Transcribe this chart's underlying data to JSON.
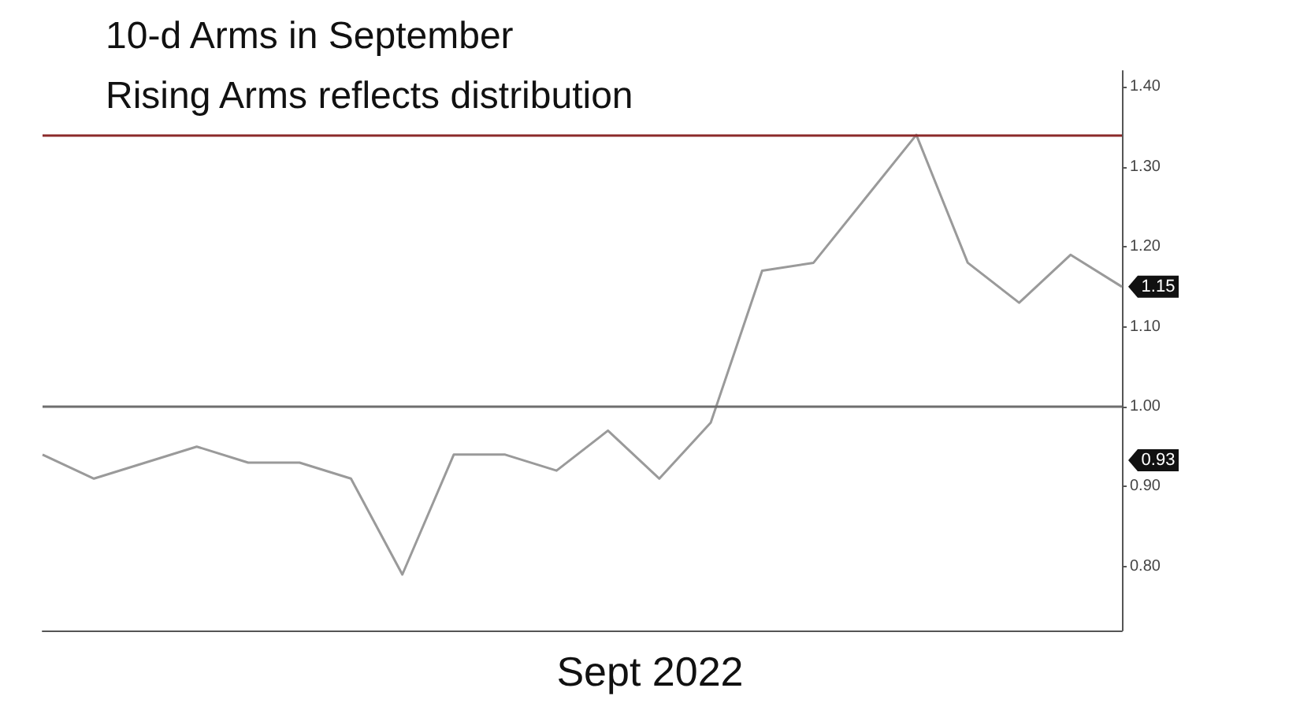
{
  "chart_data": {
    "type": "line",
    "title": "10-d Arms in September",
    "subtitle": "Rising Arms reflects distribution",
    "xlabel": "Sept 2022",
    "categories": [
      null,
      null,
      null,
      null,
      null,
      null,
      null,
      null,
      null,
      null,
      null,
      null,
      null,
      null,
      null,
      null,
      null,
      null,
      null,
      null,
      null,
      null
    ],
    "series": [
      {
        "color": "#9a9a9a",
        "values": [
          0.94,
          0.91,
          0.93,
          0.95,
          0.93,
          0.93,
          0.91,
          0.79,
          0.94,
          0.94,
          0.92,
          0.97,
          0.91,
          0.98,
          1.17,
          1.18,
          1.26,
          1.34,
          1.18,
          1.13,
          1.19,
          1.15
        ],
        "value_labels": [
          null,
          null,
          null,
          null,
          null,
          null,
          null,
          null,
          null,
          null,
          null,
          null,
          null,
          null,
          null,
          null,
          null,
          null,
          null,
          null,
          null,
          "1.15"
        ]
      }
    ],
    "ylim": [
      0.72,
      1.42
    ],
    "yticks": [
      {
        "value": 0.8,
        "label": "0.80"
      },
      {
        "value": 0.9,
        "label": "0.90"
      },
      {
        "value": 1.0,
        "label": "1.00"
      },
      {
        "value": 1.1,
        "label": "1.10"
      },
      {
        "value": 1.2,
        "label": "1.20"
      },
      {
        "value": 1.3,
        "label": "1.30"
      },
      {
        "value": 1.4,
        "label": "1.40"
      }
    ],
    "tick_labels": "y",
    "grid": false,
    "marker": "none",
    "line_style": "solid",
    "ref_lines": [
      {
        "axis": "y",
        "value": 1.34,
        "color": "#8b2a2a"
      },
      {
        "axis": "y",
        "value": 1.0,
        "color": "#6e6e6e"
      }
    ],
    "annotations": [
      "0.93"
    ]
  }
}
